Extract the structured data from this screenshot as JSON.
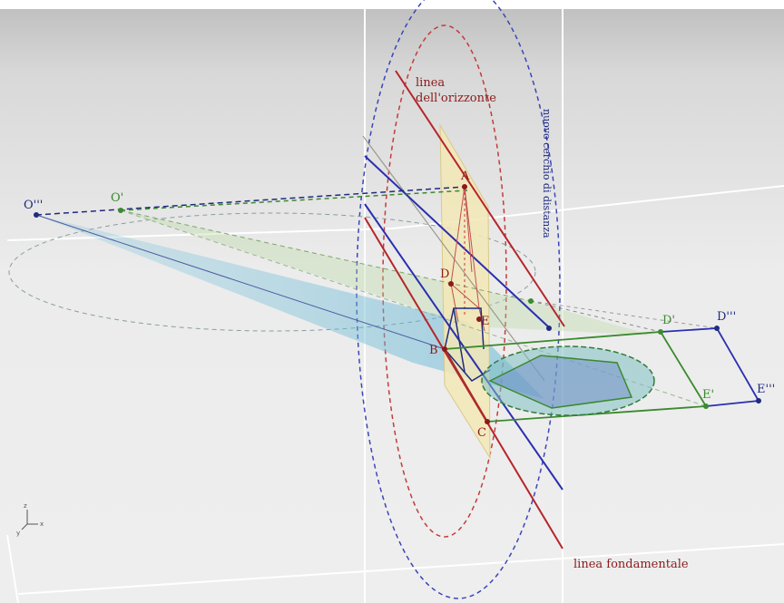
{
  "colors": {
    "red": "#b5252b",
    "blue": "#2a2fb0",
    "green": "#3a8a2e",
    "navy": "#1f2a80",
    "plane_fill": "#f3e7b6"
  },
  "labels": {
    "horizon_line": [
      "linea",
      "dell'orizzonte"
    ],
    "ground_line": "linea fondamentale",
    "distance_circle": "nuovo cerchio di distanza"
  },
  "points": {
    "O3": "O'''",
    "O1": "O'",
    "A": "A",
    "B": "B",
    "C": "C",
    "D": "D",
    "E": "E",
    "D1": "D'",
    "D3": "D'''",
    "E1": "E'",
    "E3": "E'''"
  },
  "axis_gizmo": {
    "z": "z",
    "x": "x",
    "y": "y"
  }
}
